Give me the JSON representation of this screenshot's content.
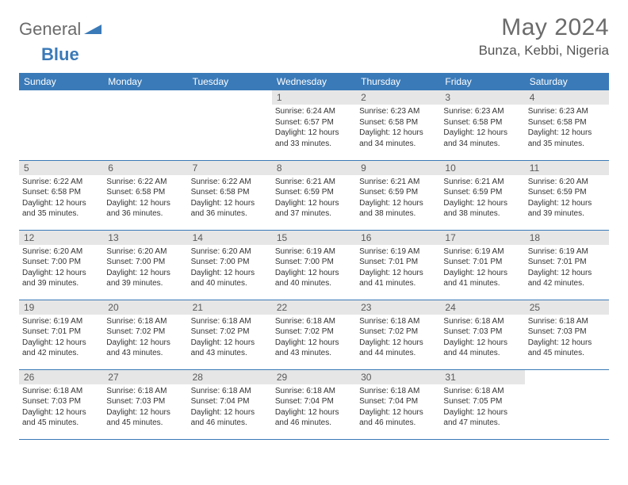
{
  "brand": {
    "general": "General",
    "blue": "Blue"
  },
  "title": "May 2024",
  "location": "Bunza, Kebbi, Nigeria",
  "colors": {
    "headerBar": "#3a7ab8",
    "dayNumBg": "#e6e6e6",
    "textMuted": "#6b6b6b",
    "textBody": "#333333",
    "rowBorder": "#3a7ab8"
  },
  "fonts": {
    "headerSize": 12,
    "bodySize": 10,
    "titleSize": 30,
    "locationSize": 17
  },
  "dayHeaders": [
    "Sunday",
    "Monday",
    "Tuesday",
    "Wednesday",
    "Thursday",
    "Friday",
    "Saturday"
  ],
  "weeks": [
    [
      null,
      null,
      null,
      {
        "n": "1",
        "sr": "6:24 AM",
        "ss": "6:57 PM",
        "dl": "12 hours and 33 minutes."
      },
      {
        "n": "2",
        "sr": "6:23 AM",
        "ss": "6:58 PM",
        "dl": "12 hours and 34 minutes."
      },
      {
        "n": "3",
        "sr": "6:23 AM",
        "ss": "6:58 PM",
        "dl": "12 hours and 34 minutes."
      },
      {
        "n": "4",
        "sr": "6:23 AM",
        "ss": "6:58 PM",
        "dl": "12 hours and 35 minutes."
      }
    ],
    [
      {
        "n": "5",
        "sr": "6:22 AM",
        "ss": "6:58 PM",
        "dl": "12 hours and 35 minutes."
      },
      {
        "n": "6",
        "sr": "6:22 AM",
        "ss": "6:58 PM",
        "dl": "12 hours and 36 minutes."
      },
      {
        "n": "7",
        "sr": "6:22 AM",
        "ss": "6:58 PM",
        "dl": "12 hours and 36 minutes."
      },
      {
        "n": "8",
        "sr": "6:21 AM",
        "ss": "6:59 PM",
        "dl": "12 hours and 37 minutes."
      },
      {
        "n": "9",
        "sr": "6:21 AM",
        "ss": "6:59 PM",
        "dl": "12 hours and 38 minutes."
      },
      {
        "n": "10",
        "sr": "6:21 AM",
        "ss": "6:59 PM",
        "dl": "12 hours and 38 minutes."
      },
      {
        "n": "11",
        "sr": "6:20 AM",
        "ss": "6:59 PM",
        "dl": "12 hours and 39 minutes."
      }
    ],
    [
      {
        "n": "12",
        "sr": "6:20 AM",
        "ss": "7:00 PM",
        "dl": "12 hours and 39 minutes."
      },
      {
        "n": "13",
        "sr": "6:20 AM",
        "ss": "7:00 PM",
        "dl": "12 hours and 39 minutes."
      },
      {
        "n": "14",
        "sr": "6:20 AM",
        "ss": "7:00 PM",
        "dl": "12 hours and 40 minutes."
      },
      {
        "n": "15",
        "sr": "6:19 AM",
        "ss": "7:00 PM",
        "dl": "12 hours and 40 minutes."
      },
      {
        "n": "16",
        "sr": "6:19 AM",
        "ss": "7:01 PM",
        "dl": "12 hours and 41 minutes."
      },
      {
        "n": "17",
        "sr": "6:19 AM",
        "ss": "7:01 PM",
        "dl": "12 hours and 41 minutes."
      },
      {
        "n": "18",
        "sr": "6:19 AM",
        "ss": "7:01 PM",
        "dl": "12 hours and 42 minutes."
      }
    ],
    [
      {
        "n": "19",
        "sr": "6:19 AM",
        "ss": "7:01 PM",
        "dl": "12 hours and 42 minutes."
      },
      {
        "n": "20",
        "sr": "6:18 AM",
        "ss": "7:02 PM",
        "dl": "12 hours and 43 minutes."
      },
      {
        "n": "21",
        "sr": "6:18 AM",
        "ss": "7:02 PM",
        "dl": "12 hours and 43 minutes."
      },
      {
        "n": "22",
        "sr": "6:18 AM",
        "ss": "7:02 PM",
        "dl": "12 hours and 43 minutes."
      },
      {
        "n": "23",
        "sr": "6:18 AM",
        "ss": "7:02 PM",
        "dl": "12 hours and 44 minutes."
      },
      {
        "n": "24",
        "sr": "6:18 AM",
        "ss": "7:03 PM",
        "dl": "12 hours and 44 minutes."
      },
      {
        "n": "25",
        "sr": "6:18 AM",
        "ss": "7:03 PM",
        "dl": "12 hours and 45 minutes."
      }
    ],
    [
      {
        "n": "26",
        "sr": "6:18 AM",
        "ss": "7:03 PM",
        "dl": "12 hours and 45 minutes."
      },
      {
        "n": "27",
        "sr": "6:18 AM",
        "ss": "7:03 PM",
        "dl": "12 hours and 45 minutes."
      },
      {
        "n": "28",
        "sr": "6:18 AM",
        "ss": "7:04 PM",
        "dl": "12 hours and 46 minutes."
      },
      {
        "n": "29",
        "sr": "6:18 AM",
        "ss": "7:04 PM",
        "dl": "12 hours and 46 minutes."
      },
      {
        "n": "30",
        "sr": "6:18 AM",
        "ss": "7:04 PM",
        "dl": "12 hours and 46 minutes."
      },
      {
        "n": "31",
        "sr": "6:18 AM",
        "ss": "7:05 PM",
        "dl": "12 hours and 47 minutes."
      },
      null
    ]
  ],
  "labels": {
    "sunrise": "Sunrise:",
    "sunset": "Sunset:",
    "daylight": "Daylight:"
  }
}
